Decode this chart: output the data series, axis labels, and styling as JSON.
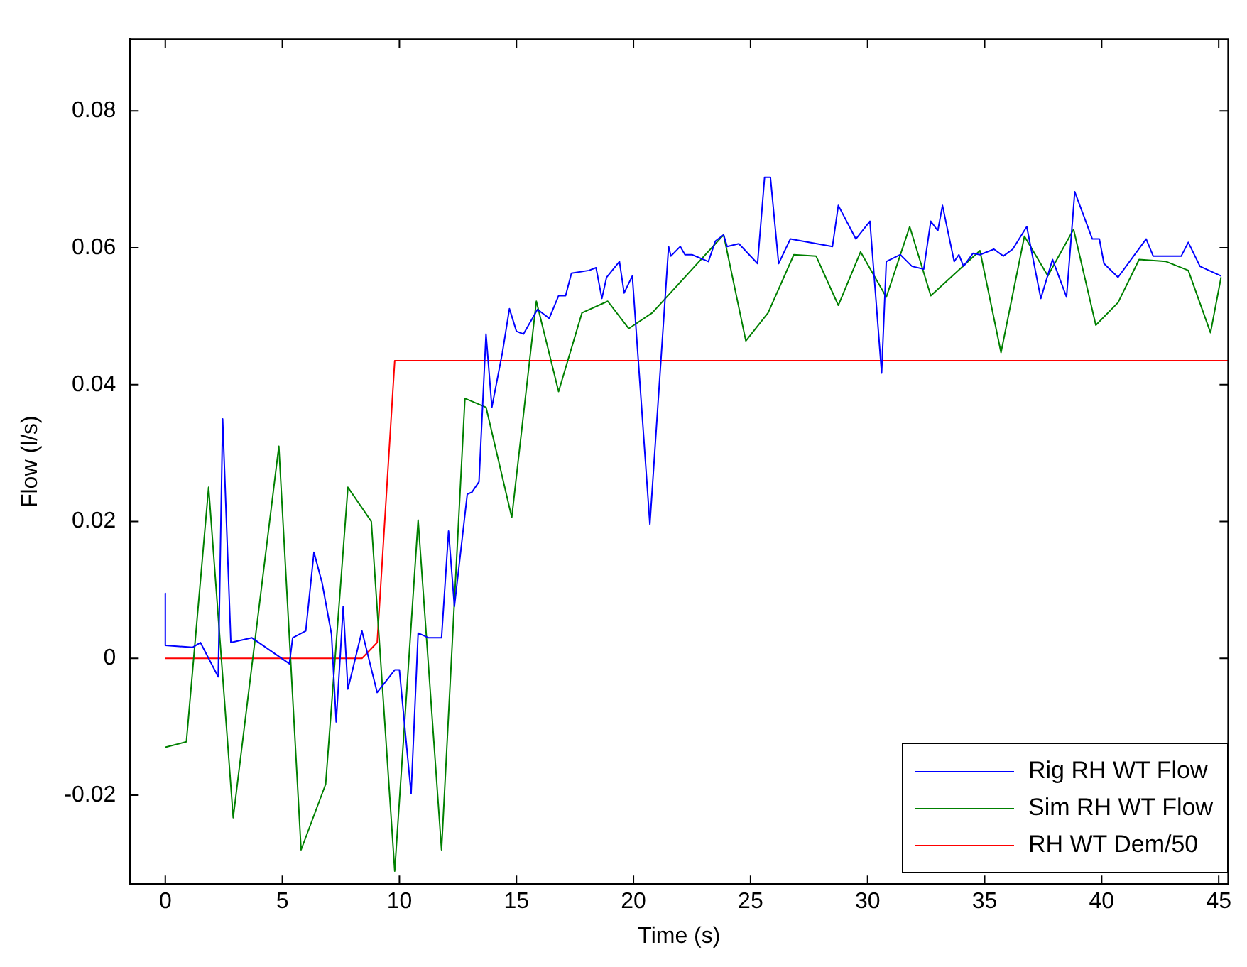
{
  "chart_data": {
    "type": "line",
    "xlabel": "Time (s)",
    "ylabel": "Flow (l/s)",
    "xlim": [
      -1.5,
      45.4
    ],
    "xticks": [
      0,
      5,
      10,
      15,
      20,
      25,
      30,
      35,
      40,
      45
    ],
    "ylim": [
      -0.033,
      0.0905
    ],
    "yticks": [
      -0.02,
      0,
      0.02,
      0.04,
      0.06,
      0.08
    ],
    "grid": false,
    "legend": "bottom right",
    "marker": "none",
    "line_style": "solid",
    "series": [
      {
        "name": "Rig RH WT Flow",
        "color": "#0000ff",
        "x": [
          0,
          0,
          1.16,
          1.5,
          2.26,
          2.45,
          2.8,
          3.7,
          5.3,
          5.44,
          6.0,
          6.35,
          6.7,
          7.1,
          7.3,
          7.6,
          7.8,
          8.4,
          9.05,
          9.8,
          10.0,
          10.5,
          10.8,
          11.25,
          11.8,
          12.1,
          12.35,
          12.9,
          13.1,
          13.4,
          13.7,
          13.95,
          14.4,
          14.7,
          15.0,
          15.3,
          15.9,
          16.4,
          16.8,
          17.1,
          17.35,
          18.1,
          18.4,
          18.65,
          18.85,
          19.4,
          19.6,
          19.95,
          20.7,
          21.5,
          21.6,
          22.0,
          22.2,
          22.5,
          23.2,
          23.5,
          23.85,
          24.0,
          24.5,
          25.3,
          25.6,
          25.85,
          26.2,
          26.7,
          28.5,
          28.75,
          29.5,
          30.1,
          30.6,
          30.8,
          31.4,
          31.9,
          32.4,
          32.7,
          33.0,
          33.2,
          33.7,
          33.9,
          34.1,
          34.5,
          34.8,
          35.4,
          35.8,
          36.2,
          36.8,
          37.4,
          37.9,
          38.5,
          38.85,
          39.6,
          39.9,
          40.1,
          40.7,
          41.9,
          42.2,
          43.4,
          43.7,
          44.2,
          45.1
        ],
        "values": [
          0.0095,
          0.0019,
          0.0016,
          0.0023,
          -0.0027,
          0.035,
          0.0023,
          0.003,
          -0.0008,
          0.003,
          0.004,
          0.0155,
          0.011,
          0.0035,
          -0.0093,
          0.0076,
          -0.0045,
          0.004,
          -0.005,
          -0.0017,
          -0.0017,
          -0.0198,
          0.0037,
          0.003,
          0.003,
          0.0186,
          0.0076,
          0.024,
          0.0243,
          0.0258,
          0.0474,
          0.0367,
          0.0447,
          0.0511,
          0.0478,
          0.0474,
          0.051,
          0.0497,
          0.053,
          0.053,
          0.0563,
          0.0567,
          0.0571,
          0.0526,
          0.0557,
          0.058,
          0.0534,
          0.0559,
          0.0196,
          0.0602,
          0.0588,
          0.0602,
          0.059,
          0.059,
          0.058,
          0.061,
          0.0619,
          0.0602,
          0.0606,
          0.0577,
          0.0703,
          0.0703,
          0.0577,
          0.0613,
          0.0602,
          0.0662,
          0.0613,
          0.0639,
          0.0417,
          0.058,
          0.059,
          0.0573,
          0.0569,
          0.0639,
          0.0625,
          0.0662,
          0.058,
          0.059,
          0.0573,
          0.0592,
          0.059,
          0.0598,
          0.0588,
          0.0598,
          0.0631,
          0.0526,
          0.0583,
          0.0528,
          0.0682,
          0.0613,
          0.0613,
          0.0577,
          0.0557,
          0.0613,
          0.0588,
          0.0588,
          0.0608,
          0.0573,
          0.0559
        ]
      },
      {
        "name": "Sim RH WT Flow",
        "color": "#008000",
        "x": [
          0,
          0.9,
          1.85,
          2.9,
          4.85,
          5.8,
          6.85,
          7.8,
          8.8,
          9.8,
          10.8,
          11.8,
          12.8,
          13.7,
          14.8,
          15.85,
          16.8,
          17.8,
          18.9,
          19.8,
          20.8,
          23.85,
          24.8,
          25.75,
          26.85,
          27.8,
          28.75,
          29.7,
          30.8,
          31.8,
          32.7,
          34.8,
          35.7,
          36.7,
          37.7,
          38.8,
          39.75,
          40.7,
          41.6,
          42.75,
          43.7,
          44.65,
          45.1
        ],
        "values": [
          -0.013,
          -0.0122,
          0.025,
          -0.0233,
          0.031,
          -0.028,
          -0.0184,
          0.025,
          0.02,
          -0.0311,
          0.0202,
          -0.028,
          0.038,
          0.0367,
          0.0206,
          0.0522,
          0.039,
          0.0505,
          0.0522,
          0.0482,
          0.0505,
          0.0619,
          0.0464,
          0.0505,
          0.059,
          0.0588,
          0.0516,
          0.0594,
          0.0528,
          0.0631,
          0.053,
          0.0596,
          0.0447,
          0.0617,
          0.0559,
          0.0627,
          0.0487,
          0.052,
          0.0583,
          0.058,
          0.0567,
          0.0476,
          0.0557
        ]
      },
      {
        "name": "RH WT Dem/50",
        "color": "#ff0000",
        "x": [
          0,
          8.4,
          9.05,
          9.8,
          45.4
        ],
        "values": [
          0,
          0,
          0.0023,
          0.0435,
          0.0435
        ]
      }
    ]
  }
}
